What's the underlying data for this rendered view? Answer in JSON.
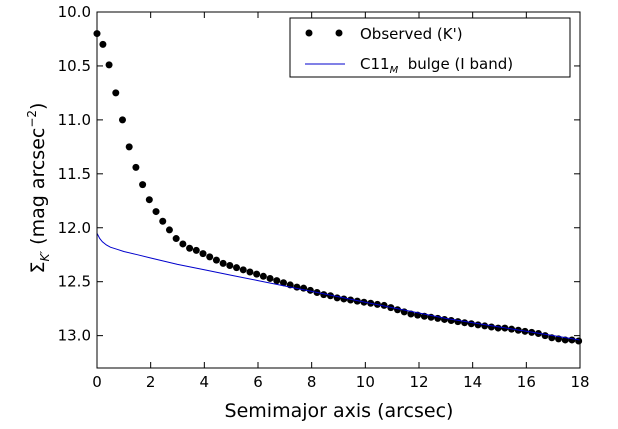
{
  "chart_data": {
    "type": "scatter",
    "xlabel": "Semimajor axis (arcsec)",
    "ylabel_symbol": "Σ",
    "ylabel_sub": "K′",
    "ylabel_text": " (mag arcsec",
    "ylabel_exp": "−2",
    "ylabel_close": ")",
    "xlim": [
      0,
      18
    ],
    "ylim": [
      13.3,
      10.0
    ],
    "y_inverted": true,
    "xticks": [
      "0",
      "2",
      "4",
      "6",
      "8",
      "10",
      "12",
      "14",
      "16",
      "18"
    ],
    "yticks": [
      "10.0",
      "10.5",
      "11.0",
      "11.5",
      "12.0",
      "12.5",
      "13.0"
    ],
    "legend_position": "top-right",
    "series": [
      {
        "name": "Observed (K')",
        "kind": "scatter",
        "color": "#000000",
        "x": [
          0.0,
          0.22,
          0.45,
          0.7,
          0.95,
          1.2,
          1.45,
          1.7,
          1.95,
          2.2,
          2.45,
          2.7,
          2.95,
          3.2,
          3.45,
          3.7,
          3.95,
          4.2,
          4.45,
          4.7,
          4.95,
          5.2,
          5.45,
          5.7,
          5.95,
          6.2,
          6.45,
          6.7,
          6.95,
          7.2,
          7.45,
          7.7,
          7.95,
          8.2,
          8.45,
          8.7,
          8.95,
          9.2,
          9.45,
          9.7,
          9.95,
          10.2,
          10.45,
          10.7,
          10.95,
          11.2,
          11.45,
          11.7,
          11.95,
          12.2,
          12.45,
          12.7,
          12.95,
          13.2,
          13.45,
          13.7,
          13.95,
          14.2,
          14.45,
          14.7,
          14.95,
          15.2,
          15.45,
          15.7,
          15.95,
          16.2,
          16.45,
          16.7,
          16.95,
          17.2,
          17.45,
          17.7,
          17.95
        ],
        "y": [
          10.2,
          10.3,
          10.49,
          10.75,
          11.0,
          11.25,
          11.44,
          11.6,
          11.74,
          11.85,
          11.94,
          12.02,
          12.1,
          12.15,
          12.19,
          12.21,
          12.24,
          12.27,
          12.3,
          12.33,
          12.35,
          12.37,
          12.39,
          12.41,
          12.43,
          12.45,
          12.47,
          12.49,
          12.51,
          12.53,
          12.55,
          12.56,
          12.58,
          12.6,
          12.62,
          12.63,
          12.65,
          12.66,
          12.67,
          12.68,
          12.69,
          12.7,
          12.71,
          12.72,
          12.74,
          12.76,
          12.78,
          12.8,
          12.81,
          12.82,
          12.83,
          12.84,
          12.85,
          12.86,
          12.87,
          12.88,
          12.89,
          12.9,
          12.91,
          12.92,
          12.93,
          12.93,
          12.94,
          12.95,
          12.96,
          12.97,
          12.98,
          13.0,
          13.02,
          13.03,
          13.04,
          13.04,
          13.05
        ]
      },
      {
        "name": "C11",
        "name_sub": "M",
        "name_suffix": "  bulge (I band)",
        "kind": "line",
        "color": "#0000cc",
        "x": [
          0.0,
          0.1,
          0.2,
          0.35,
          0.5,
          0.75,
          1.0,
          1.5,
          2.0,
          3.0,
          4.0,
          5.0,
          6.0,
          7.0,
          8.0,
          9.0,
          10.0,
          11.0,
          12.0,
          13.0,
          14.0,
          15.0,
          16.0,
          17.0,
          18.0
        ],
        "y": [
          12.05,
          12.1,
          12.13,
          12.16,
          12.18,
          12.2,
          12.22,
          12.25,
          12.28,
          12.34,
          12.39,
          12.44,
          12.49,
          12.54,
          12.59,
          12.64,
          12.69,
          12.74,
          12.79,
          12.84,
          12.88,
          12.92,
          12.96,
          13.0,
          13.04
        ]
      }
    ]
  }
}
